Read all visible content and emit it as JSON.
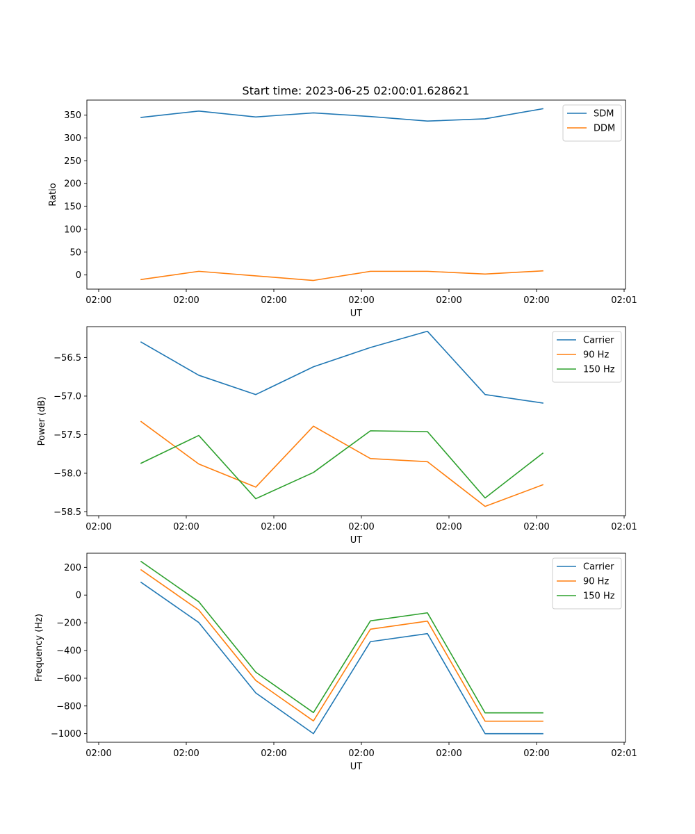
{
  "figure_title": "Start time: 2023-06-25 02:00:01.628621",
  "chart_data": [
    {
      "type": "line",
      "title": "Start time: 2023-06-25 02:00:01.628621",
      "xlabel": "UT",
      "ylabel": "Ratio",
      "x_tick_labels": [
        "02:00",
        "02:00",
        "02:00",
        "02:00",
        "02:00",
        "02:00",
        "02:01"
      ],
      "y_ticks": [
        0,
        50,
        100,
        150,
        200,
        250,
        300,
        350
      ],
      "ylim": [
        -31,
        383
      ],
      "legend_position": "upper right",
      "series": [
        {
          "name": "SDM",
          "color": "#1f77b4",
          "values": [
            345,
            359,
            346,
            355,
            347,
            337,
            342,
            364
          ]
        },
        {
          "name": "DDM",
          "color": "#ff7f0e",
          "values": [
            -10,
            8,
            -2,
            -12,
            8,
            8,
            2,
            9
          ]
        }
      ]
    },
    {
      "type": "line",
      "xlabel": "UT",
      "ylabel": "Power (dB)",
      "x_tick_labels": [
        "02:00",
        "02:00",
        "02:00",
        "02:00",
        "02:00",
        "02:00",
        "02:01"
      ],
      "y_ticks": [
        -58.5,
        -58.0,
        -57.5,
        -57.0,
        -56.5
      ],
      "y_tick_labels": [
        "−58.5",
        "−58.0",
        "−57.5",
        "−57.0",
        "−56.5"
      ],
      "ylim": [
        -58.55,
        -56.1
      ],
      "legend_position": "upper right",
      "series": [
        {
          "name": "Carrier",
          "color": "#1f77b4",
          "values": [
            -56.3,
            -56.73,
            -56.98,
            -56.62,
            -56.37,
            -56.16,
            -56.98,
            -57.09
          ]
        },
        {
          "name": "90 Hz",
          "color": "#ff7f0e",
          "values": [
            -57.33,
            -57.88,
            -58.18,
            -57.39,
            -57.81,
            -57.85,
            -58.43,
            -58.15
          ]
        },
        {
          "name": "150 Hz",
          "color": "#2ca02c",
          "values": [
            -57.87,
            -57.51,
            -58.33,
            -57.99,
            -57.45,
            -57.46,
            -58.32,
            -57.74
          ]
        }
      ]
    },
    {
      "type": "line",
      "xlabel": "UT",
      "ylabel": "Frequency (Hz)",
      "x_tick_labels": [
        "02:00",
        "02:00",
        "02:00",
        "02:00",
        "02:00",
        "02:00",
        "02:01"
      ],
      "y_ticks": [
        -1000,
        -800,
        -600,
        -400,
        -200,
        0,
        200
      ],
      "y_tick_labels": [
        "−1000",
        "−800",
        "−600",
        "−400",
        "−200",
        "0",
        "200"
      ],
      "ylim": [
        -1062,
        302
      ],
      "legend_position": "upper right",
      "series": [
        {
          "name": "Carrier",
          "color": "#1f77b4",
          "values": [
            92,
            -198,
            -706,
            -1000,
            -336,
            -278,
            -1000,
            -1000
          ]
        },
        {
          "name": "90 Hz",
          "color": "#ff7f0e",
          "values": [
            182,
            -108,
            -616,
            -908,
            -246,
            -188,
            -910,
            -910
          ]
        },
        {
          "name": "150 Hz",
          "color": "#2ca02c",
          "values": [
            242,
            -48,
            -556,
            -848,
            -186,
            -128,
            -850,
            -850
          ]
        }
      ]
    }
  ]
}
